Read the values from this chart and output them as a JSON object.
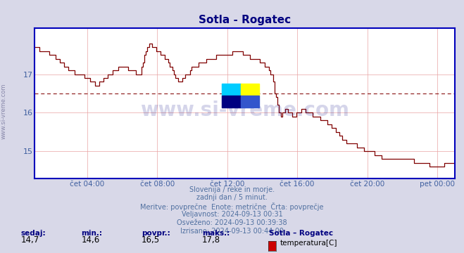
{
  "title": "Sotla - Rogatec",
  "title_color": "#000080",
  "bg_color": "#d8d8e8",
  "plot_bg_color": "#ffffff",
  "line_color": "#800000",
  "avg_line_color": "#800000",
  "avg_value": 16.5,
  "ylim": [
    14.3,
    18.2
  ],
  "yticks": [
    15,
    16,
    17
  ],
  "xlabel_color": "#4060a0",
  "ylabel_color": "#4060a0",
  "grid_color": "#e8a0a0",
  "axis_color": "#0000bb",
  "watermark": "www.si-vreme.com",
  "watermark_color": "#1a1a8c",
  "xtick_labels": [
    "čet 04:00",
    "čet 08:00",
    "čet 12:00",
    "čet 16:00",
    "čet 20:00",
    "pet 00:00"
  ],
  "subtitle_lines": [
    "Slovenija / reke in morje.",
    "zadnji dan / 5 minut.",
    "Meritve: povprečne  Enote: metrične  Črta: povprečje",
    "Veljavnost: 2024-09-13 00:31",
    "Osveženo: 2024-09-13 00:39:38",
    "Izrisano: 2024-09-13 00:44:00"
  ],
  "footer_labels": [
    "sedaj:",
    "min.:",
    "povpr.:",
    "maks.:"
  ],
  "footer_values": [
    "14,7",
    "14,6",
    "16,5",
    "17,8"
  ],
  "footer_station": "Sotla – Rogatec",
  "footer_legend": "temperatura[C]",
  "footer_legend_color": "#cc0000"
}
